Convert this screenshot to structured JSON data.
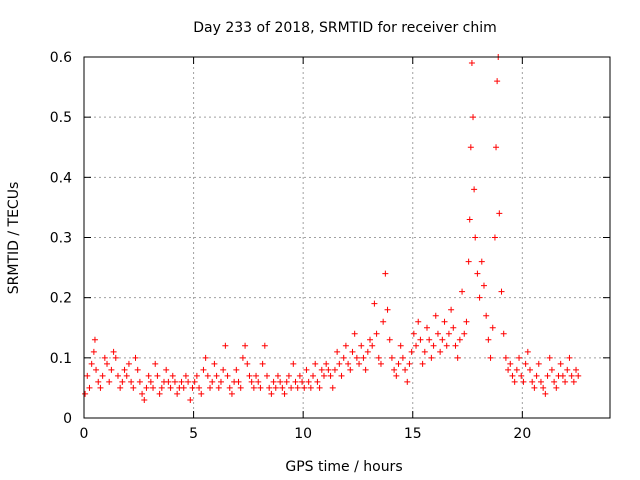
{
  "chart_data": {
    "type": "scatter",
    "title": "Day 233 of 2018, SRMTID for receiver chim",
    "xlabel": "GPS time / hours",
    "ylabel": "SRMTID / TECUs",
    "xlim": [
      0,
      24
    ],
    "ylim": [
      0,
      0.6
    ],
    "xticks": [
      0,
      5,
      10,
      15,
      20
    ],
    "yticks": [
      0,
      0.1,
      0.2,
      0.3,
      0.4,
      0.5,
      0.6
    ],
    "xtick_labels": [
      "0",
      "5",
      "10",
      "15",
      "20"
    ],
    "ytick_labels": [
      "0",
      "0.1",
      "0.2",
      "0.3",
      "0.4",
      "0.5",
      "0.6"
    ],
    "grid": true,
    "marker": "+",
    "series": [
      {
        "name": "SRMTID",
        "color": "#ff0000",
        "points": [
          [
            0.05,
            0.04
          ],
          [
            0.15,
            0.07
          ],
          [
            0.25,
            0.05
          ],
          [
            0.35,
            0.09
          ],
          [
            0.45,
            0.11
          ],
          [
            0.5,
            0.13
          ],
          [
            0.55,
            0.08
          ],
          [
            0.65,
            0.06
          ],
          [
            0.75,
            0.05
          ],
          [
            0.85,
            0.07
          ],
          [
            0.95,
            0.1
          ],
          [
            1.05,
            0.09
          ],
          [
            1.15,
            0.06
          ],
          [
            1.25,
            0.08
          ],
          [
            1.35,
            0.11
          ],
          [
            1.45,
            0.1
          ],
          [
            1.55,
            0.07
          ],
          [
            1.65,
            0.05
          ],
          [
            1.75,
            0.06
          ],
          [
            1.85,
            0.08
          ],
          [
            1.95,
            0.07
          ],
          [
            2.05,
            0.09
          ],
          [
            2.15,
            0.06
          ],
          [
            2.25,
            0.05
          ],
          [
            2.35,
            0.1
          ],
          [
            2.45,
            0.08
          ],
          [
            2.55,
            0.06
          ],
          [
            2.65,
            0.04
          ],
          [
            2.75,
            0.03
          ],
          [
            2.85,
            0.05
          ],
          [
            2.95,
            0.07
          ],
          [
            3.05,
            0.06
          ],
          [
            3.15,
            0.05
          ],
          [
            3.25,
            0.09
          ],
          [
            3.35,
            0.07
          ],
          [
            3.45,
            0.04
          ],
          [
            3.55,
            0.05
          ],
          [
            3.65,
            0.06
          ],
          [
            3.75,
            0.08
          ],
          [
            3.85,
            0.06
          ],
          [
            3.95,
            0.05
          ],
          [
            4.05,
            0.07
          ],
          [
            4.15,
            0.06
          ],
          [
            4.25,
            0.04
          ],
          [
            4.35,
            0.05
          ],
          [
            4.45,
            0.06
          ],
          [
            4.55,
            0.05
          ],
          [
            4.65,
            0.07
          ],
          [
            4.75,
            0.06
          ],
          [
            4.85,
            0.03
          ],
          [
            4.95,
            0.05
          ],
          [
            5.05,
            0.06
          ],
          [
            5.15,
            0.07
          ],
          [
            5.25,
            0.05
          ],
          [
            5.35,
            0.04
          ],
          [
            5.45,
            0.08
          ],
          [
            5.55,
            0.1
          ],
          [
            5.65,
            0.07
          ],
          [
            5.75,
            0.05
          ],
          [
            5.85,
            0.06
          ],
          [
            5.95,
            0.09
          ],
          [
            6.05,
            0.07
          ],
          [
            6.15,
            0.05
          ],
          [
            6.25,
            0.06
          ],
          [
            6.35,
            0.08
          ],
          [
            6.45,
            0.12
          ],
          [
            6.55,
            0.07
          ],
          [
            6.65,
            0.05
          ],
          [
            6.75,
            0.04
          ],
          [
            6.85,
            0.06
          ],
          [
            6.95,
            0.08
          ],
          [
            7.05,
            0.06
          ],
          [
            7.15,
            0.05
          ],
          [
            7.25,
            0.1
          ],
          [
            7.35,
            0.12
          ],
          [
            7.45,
            0.09
          ],
          [
            7.55,
            0.07
          ],
          [
            7.65,
            0.06
          ],
          [
            7.75,
            0.05
          ],
          [
            7.85,
            0.07
          ],
          [
            7.95,
            0.06
          ],
          [
            8.05,
            0.05
          ],
          [
            8.15,
            0.09
          ],
          [
            8.25,
            0.12
          ],
          [
            8.35,
            0.07
          ],
          [
            8.45,
            0.05
          ],
          [
            8.55,
            0.04
          ],
          [
            8.65,
            0.06
          ],
          [
            8.75,
            0.05
          ],
          [
            8.85,
            0.07
          ],
          [
            8.95,
            0.06
          ],
          [
            9.05,
            0.05
          ],
          [
            9.15,
            0.04
          ],
          [
            9.25,
            0.06
          ],
          [
            9.35,
            0.07
          ],
          [
            9.45,
            0.05
          ],
          [
            9.55,
            0.09
          ],
          [
            9.65,
            0.06
          ],
          [
            9.75,
            0.05
          ],
          [
            9.85,
            0.07
          ],
          [
            9.95,
            0.06
          ],
          [
            10.05,
            0.05
          ],
          [
            10.15,
            0.08
          ],
          [
            10.25,
            0.06
          ],
          [
            10.35,
            0.05
          ],
          [
            10.45,
            0.07
          ],
          [
            10.55,
            0.09
          ],
          [
            10.65,
            0.06
          ],
          [
            10.75,
            0.05
          ],
          [
            10.85,
            0.08
          ],
          [
            10.95,
            0.07
          ],
          [
            11.05,
            0.09
          ],
          [
            11.15,
            0.08
          ],
          [
            11.25,
            0.07
          ],
          [
            11.35,
            0.05
          ],
          [
            11.45,
            0.08
          ],
          [
            11.55,
            0.11
          ],
          [
            11.65,
            0.09
          ],
          [
            11.75,
            0.07
          ],
          [
            11.85,
            0.1
          ],
          [
            11.95,
            0.12
          ],
          [
            12.05,
            0.09
          ],
          [
            12.15,
            0.08
          ],
          [
            12.25,
            0.11
          ],
          [
            12.35,
            0.14
          ],
          [
            12.45,
            0.1
          ],
          [
            12.55,
            0.09
          ],
          [
            12.65,
            0.12
          ],
          [
            12.75,
            0.1
          ],
          [
            12.85,
            0.08
          ],
          [
            12.95,
            0.11
          ],
          [
            13.05,
            0.13
          ],
          [
            13.15,
            0.12
          ],
          [
            13.25,
            0.19
          ],
          [
            13.35,
            0.14
          ],
          [
            13.45,
            0.1
          ],
          [
            13.55,
            0.09
          ],
          [
            13.65,
            0.16
          ],
          [
            13.75,
            0.24
          ],
          [
            13.85,
            0.18
          ],
          [
            13.95,
            0.13
          ],
          [
            14.05,
            0.1
          ],
          [
            14.15,
            0.08
          ],
          [
            14.25,
            0.07
          ],
          [
            14.35,
            0.09
          ],
          [
            14.45,
            0.12
          ],
          [
            14.55,
            0.1
          ],
          [
            14.65,
            0.08
          ],
          [
            14.75,
            0.06
          ],
          [
            14.85,
            0.09
          ],
          [
            14.95,
            0.11
          ],
          [
            15.05,
            0.14
          ],
          [
            15.15,
            0.12
          ],
          [
            15.25,
            0.16
          ],
          [
            15.35,
            0.13
          ],
          [
            15.45,
            0.09
          ],
          [
            15.55,
            0.11
          ],
          [
            15.65,
            0.15
          ],
          [
            15.75,
            0.13
          ],
          [
            15.85,
            0.1
          ],
          [
            15.95,
            0.12
          ],
          [
            16.05,
            0.17
          ],
          [
            16.15,
            0.14
          ],
          [
            16.25,
            0.11
          ],
          [
            16.35,
            0.13
          ],
          [
            16.45,
            0.16
          ],
          [
            16.55,
            0.12
          ],
          [
            16.65,
            0.14
          ],
          [
            16.75,
            0.18
          ],
          [
            16.85,
            0.15
          ],
          [
            16.95,
            0.12
          ],
          [
            17.05,
            0.1
          ],
          [
            17.15,
            0.13
          ],
          [
            17.25,
            0.21
          ],
          [
            17.35,
            0.14
          ],
          [
            17.45,
            0.16
          ],
          [
            17.55,
            0.26
          ],
          [
            17.6,
            0.33
          ],
          [
            17.65,
            0.45
          ],
          [
            17.7,
            0.59
          ],
          [
            17.75,
            0.5
          ],
          [
            17.8,
            0.38
          ],
          [
            17.85,
            0.3
          ],
          [
            17.95,
            0.24
          ],
          [
            18.05,
            0.2
          ],
          [
            18.15,
            0.26
          ],
          [
            18.25,
            0.22
          ],
          [
            18.35,
            0.17
          ],
          [
            18.45,
            0.13
          ],
          [
            18.55,
            0.1
          ],
          [
            18.65,
            0.15
          ],
          [
            18.75,
            0.3
          ],
          [
            18.8,
            0.45
          ],
          [
            18.85,
            0.56
          ],
          [
            18.9,
            0.6
          ],
          [
            18.95,
            0.34
          ],
          [
            19.05,
            0.21
          ],
          [
            19.15,
            0.14
          ],
          [
            19.25,
            0.1
          ],
          [
            19.35,
            0.08
          ],
          [
            19.45,
            0.09
          ],
          [
            19.55,
            0.07
          ],
          [
            19.65,
            0.06
          ],
          [
            19.75,
            0.08
          ],
          [
            19.85,
            0.1
          ],
          [
            19.95,
            0.07
          ],
          [
            20.05,
            0.06
          ],
          [
            20.15,
            0.09
          ],
          [
            20.25,
            0.11
          ],
          [
            20.35,
            0.08
          ],
          [
            20.45,
            0.06
          ],
          [
            20.55,
            0.05
          ],
          [
            20.65,
            0.07
          ],
          [
            20.75,
            0.09
          ],
          [
            20.85,
            0.06
          ],
          [
            20.95,
            0.05
          ],
          [
            21.05,
            0.04
          ],
          [
            21.15,
            0.07
          ],
          [
            21.25,
            0.1
          ],
          [
            21.35,
            0.08
          ],
          [
            21.45,
            0.06
          ],
          [
            21.55,
            0.05
          ],
          [
            21.65,
            0.07
          ],
          [
            21.75,
            0.09
          ],
          [
            21.85,
            0.07
          ],
          [
            21.95,
            0.06
          ],
          [
            22.05,
            0.08
          ],
          [
            22.15,
            0.1
          ],
          [
            22.25,
            0.07
          ],
          [
            22.35,
            0.06
          ],
          [
            22.45,
            0.08
          ],
          [
            22.55,
            0.07
          ]
        ]
      }
    ]
  }
}
